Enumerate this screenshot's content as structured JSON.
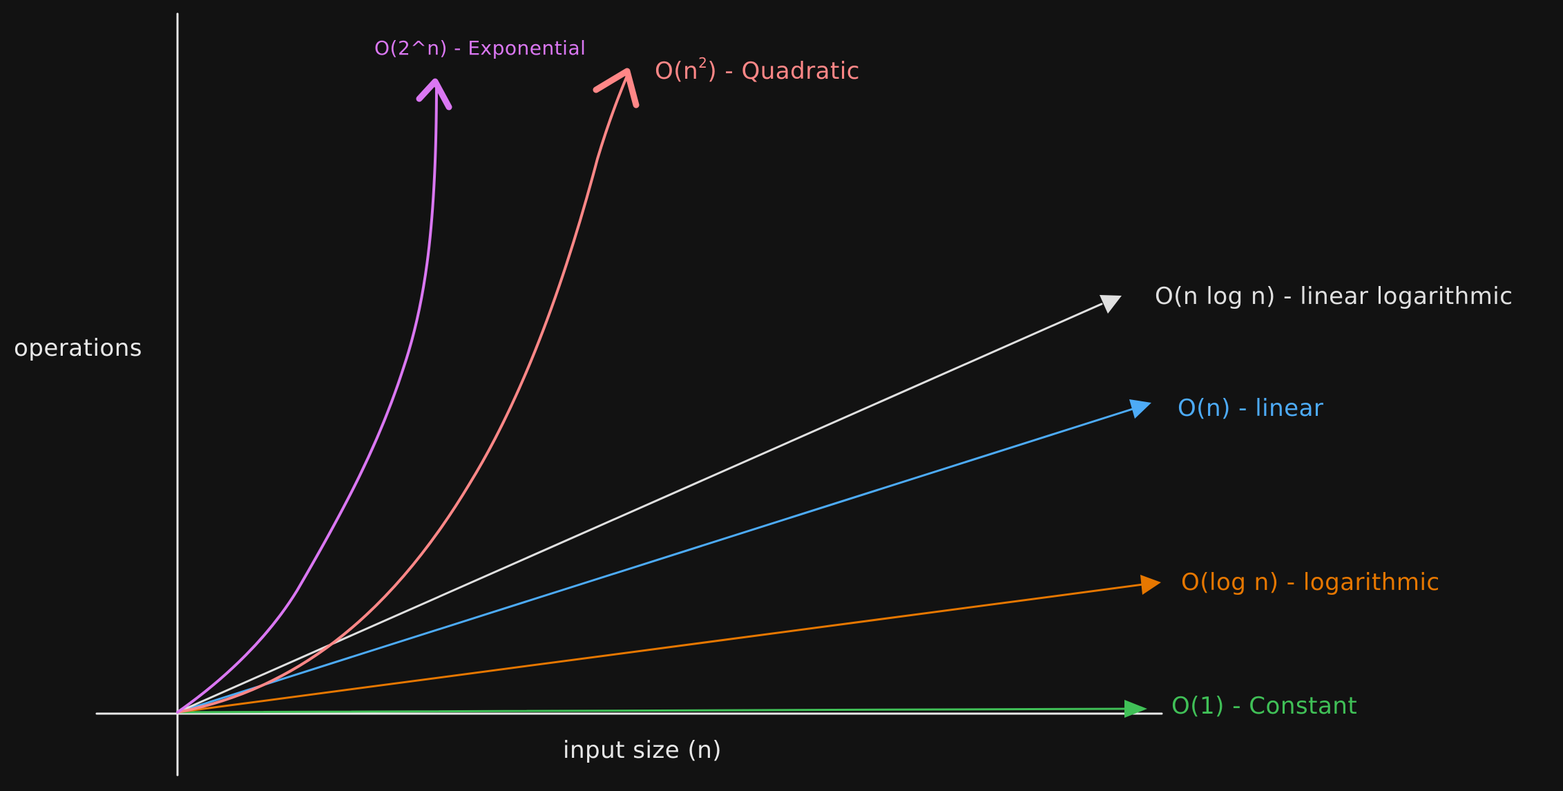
{
  "axes": {
    "y_label": "operations",
    "x_label": "input size (n)",
    "color": "#e8e8e8"
  },
  "curves": [
    {
      "key": "exponential",
      "label": "O(2^n) - Exponential",
      "color": "#da77f2"
    },
    {
      "key": "quadratic",
      "label_base": "O(n",
      "label_sup": "2",
      "label_rest": ") - Quadratic",
      "color": "#ff8787"
    },
    {
      "key": "nlogn",
      "label": "O(n log n) - linear logarithmic",
      "color": "#e0e0e0"
    },
    {
      "key": "linear",
      "label": "O(n) - linear",
      "color": "#4dabf7"
    },
    {
      "key": "logarithmic",
      "label": "O(log n) - logarithmic",
      "color": "#e67700"
    },
    {
      "key": "constant",
      "label": "O(1) - Constant",
      "color": "#40c057"
    }
  ]
}
